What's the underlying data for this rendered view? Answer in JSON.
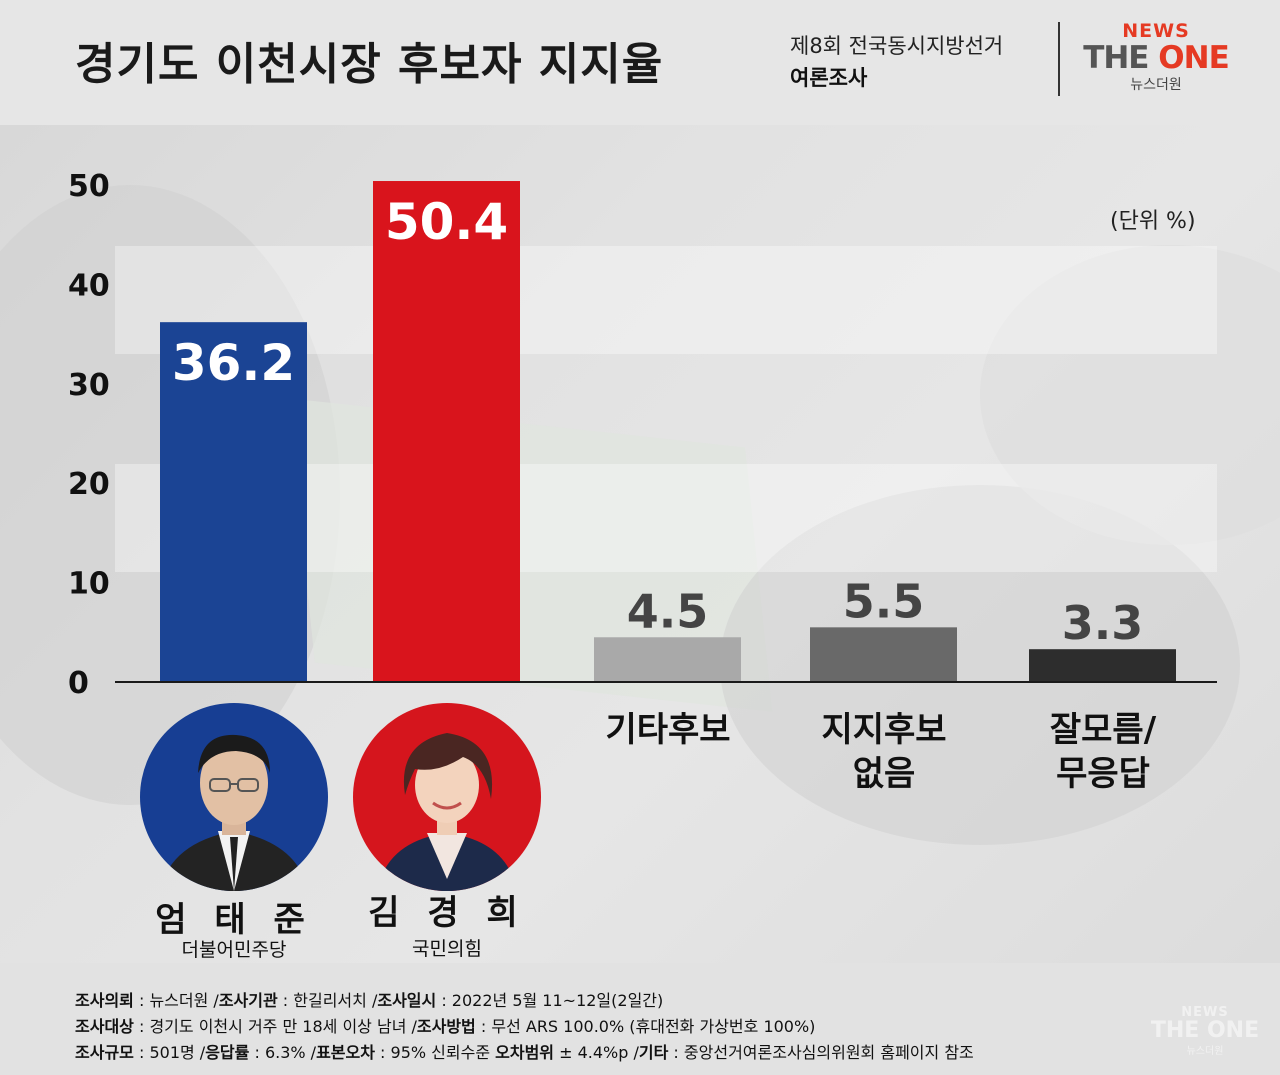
{
  "header": {
    "title": "경기도 이천시장 후보자 지지율",
    "subtitle_line1": "제8회 전국동시지방선거",
    "subtitle_line2": "여론조사"
  },
  "logo": {
    "line1": "NEWS",
    "line2_a": "THE ",
    "line2_b": "ONE",
    "line3": "뉴스더원"
  },
  "unit_label": "(단위 %)",
  "chart_data": {
    "type": "bar",
    "title": "경기도 이천시장 후보자 지지율",
    "ylim": [
      0,
      50
    ],
    "y_ticks": [
      "0",
      "10",
      "20",
      "30",
      "40",
      "50"
    ],
    "grid": false,
    "categories": [
      "엄태준",
      "김경희",
      "기타후보",
      "지지후보 없음",
      "잘모름/ 무응답"
    ],
    "values": [
      36.2,
      50.4,
      4.5,
      5.5,
      3.3
    ],
    "value_labels": [
      "36.2",
      "50.4",
      "4.5",
      "5.5",
      "3.3"
    ],
    "colors": [
      "#1b4494",
      "#d9141c",
      "#a9a9a9",
      "#696969",
      "#2d2d2d"
    ],
    "label_position": [
      "inside",
      "inside",
      "above",
      "above",
      "above"
    ]
  },
  "candidates": [
    {
      "name": "엄 태 준",
      "party": "더불어민주당",
      "color": "#173e93",
      "icon": "candidate-photo"
    },
    {
      "name": "김 경 희",
      "party": "국민의힘",
      "color": "#d5151d",
      "icon": "candidate-photo"
    }
  ],
  "other_categories": [
    {
      "line1": "기타후보",
      "line2": ""
    },
    {
      "line1": "지지후보",
      "line2": "없음"
    },
    {
      "line1": "잘모름/",
      "line2": "무응답"
    }
  ],
  "footer": {
    "line1": [
      {
        "k": "조사의뢰",
        "v": " : 뉴스더원 /"
      },
      {
        "k": "조사기관",
        "v": " : 한길리서치 /"
      },
      {
        "k": "조사일시",
        "v": " : 2022년 5월 11~12일(2일간)"
      }
    ],
    "line2": [
      {
        "k": "조사대상",
        "v": " : 경기도 이천시 거주 만 18세 이상 남녀 /"
      },
      {
        "k": "조사방법",
        "v": " : 무선 ARS 100.0% (휴대전화 가상번호 100%)"
      }
    ],
    "line3": [
      {
        "k": "조사규모",
        "v": " : 501명 /"
      },
      {
        "k": "응답률",
        "v": " : 6.3% /"
      },
      {
        "k": "표본오차",
        "v": " : 95% 신뢰수준 "
      },
      {
        "k": "오차범위",
        "v": " ± 4.4%p /"
      },
      {
        "k": "기타",
        "v": " : 중앙선거여론조사심의위원회 홈페이지 참조"
      }
    ]
  },
  "watermark": {
    "line1": "NEWS",
    "line2": "THE ONE",
    "line3": "뉴스더원"
  }
}
